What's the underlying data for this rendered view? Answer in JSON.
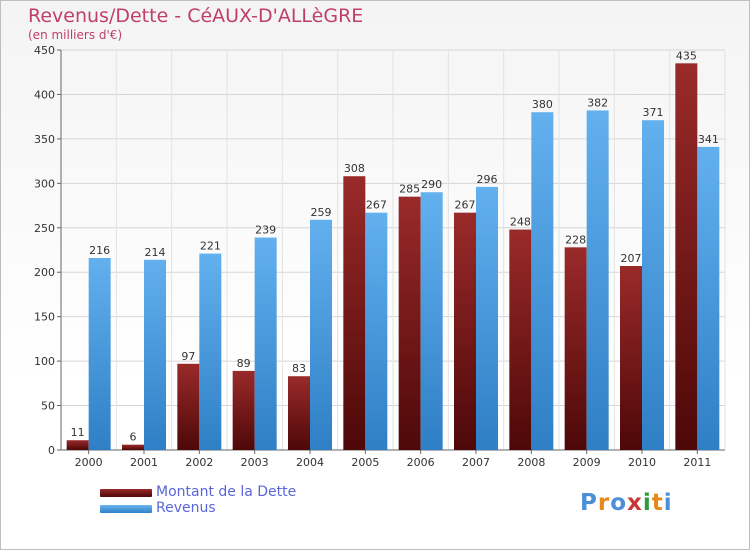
{
  "chart_data": {
    "type": "bar",
    "title": "Revenus/Dette - CéAUX-D'ALLèGRE",
    "subtitle": "(en milliers d'€)",
    "categories": [
      "2000",
      "2001",
      "2002",
      "2003",
      "2004",
      "2005",
      "2006",
      "2007",
      "2008",
      "2009",
      "2010",
      "2011"
    ],
    "series": [
      {
        "name": "Montant de la Dette",
        "color": "#7a1c1c",
        "values": [
          11,
          6,
          97,
          89,
          83,
          308,
          285,
          267,
          248,
          228,
          207,
          435
        ]
      },
      {
        "name": "Revenus",
        "color": "#4a9de0",
        "values": [
          216,
          214,
          221,
          239,
          259,
          267,
          290,
          296,
          380,
          382,
          371,
          341
        ]
      }
    ],
    "yticks": [
      0,
      50,
      100,
      150,
      200,
      250,
      300,
      350,
      400,
      450
    ],
    "ylim": [
      0,
      450
    ],
    "xlabel": "",
    "ylabel": "",
    "grid": true,
    "legend": "bottom-left"
  },
  "logo": {
    "letters": [
      "P",
      "r",
      "o",
      "x",
      "i",
      "t",
      "i"
    ],
    "colors": [
      "#4a8fd8",
      "#e28a1c",
      "#4a8fd8",
      "#c93636",
      "#2e9a3e",
      "#e28a1c",
      "#4a8fd8"
    ]
  }
}
